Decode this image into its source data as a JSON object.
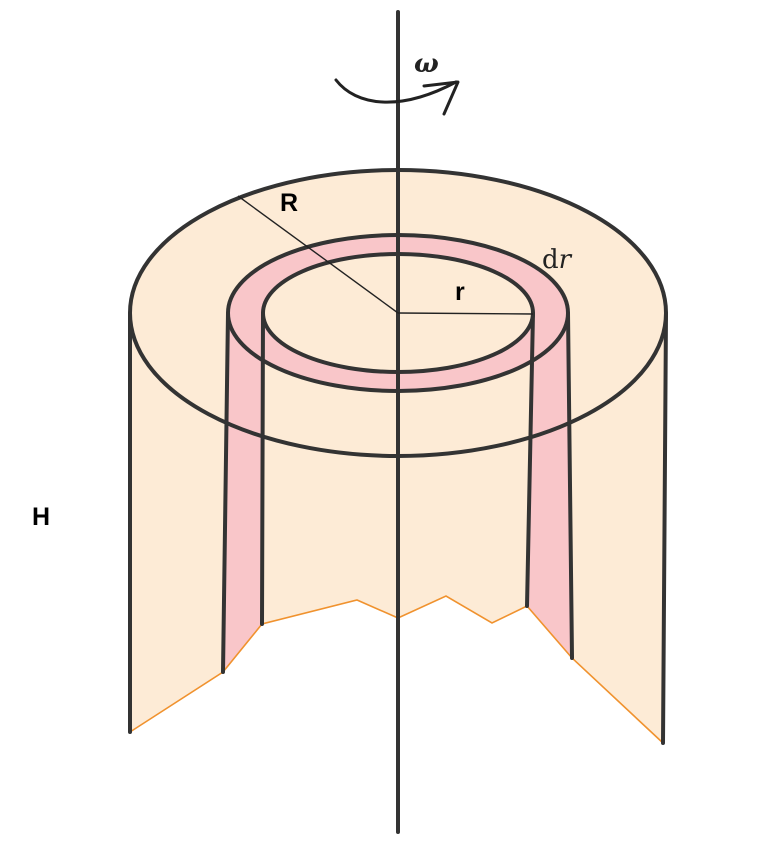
{
  "labels": {
    "omega": "ω",
    "outer_radius": "R",
    "inner_radius": "r",
    "shell_thickness_d": "d",
    "shell_thickness_var": "r",
    "height": "H"
  },
  "colors": {
    "body_fill": "#fdebd6",
    "shell_fill": "#f9c6c9",
    "outline": "#333333",
    "cut_edge": "#f0922e",
    "axis": "#333333"
  }
}
